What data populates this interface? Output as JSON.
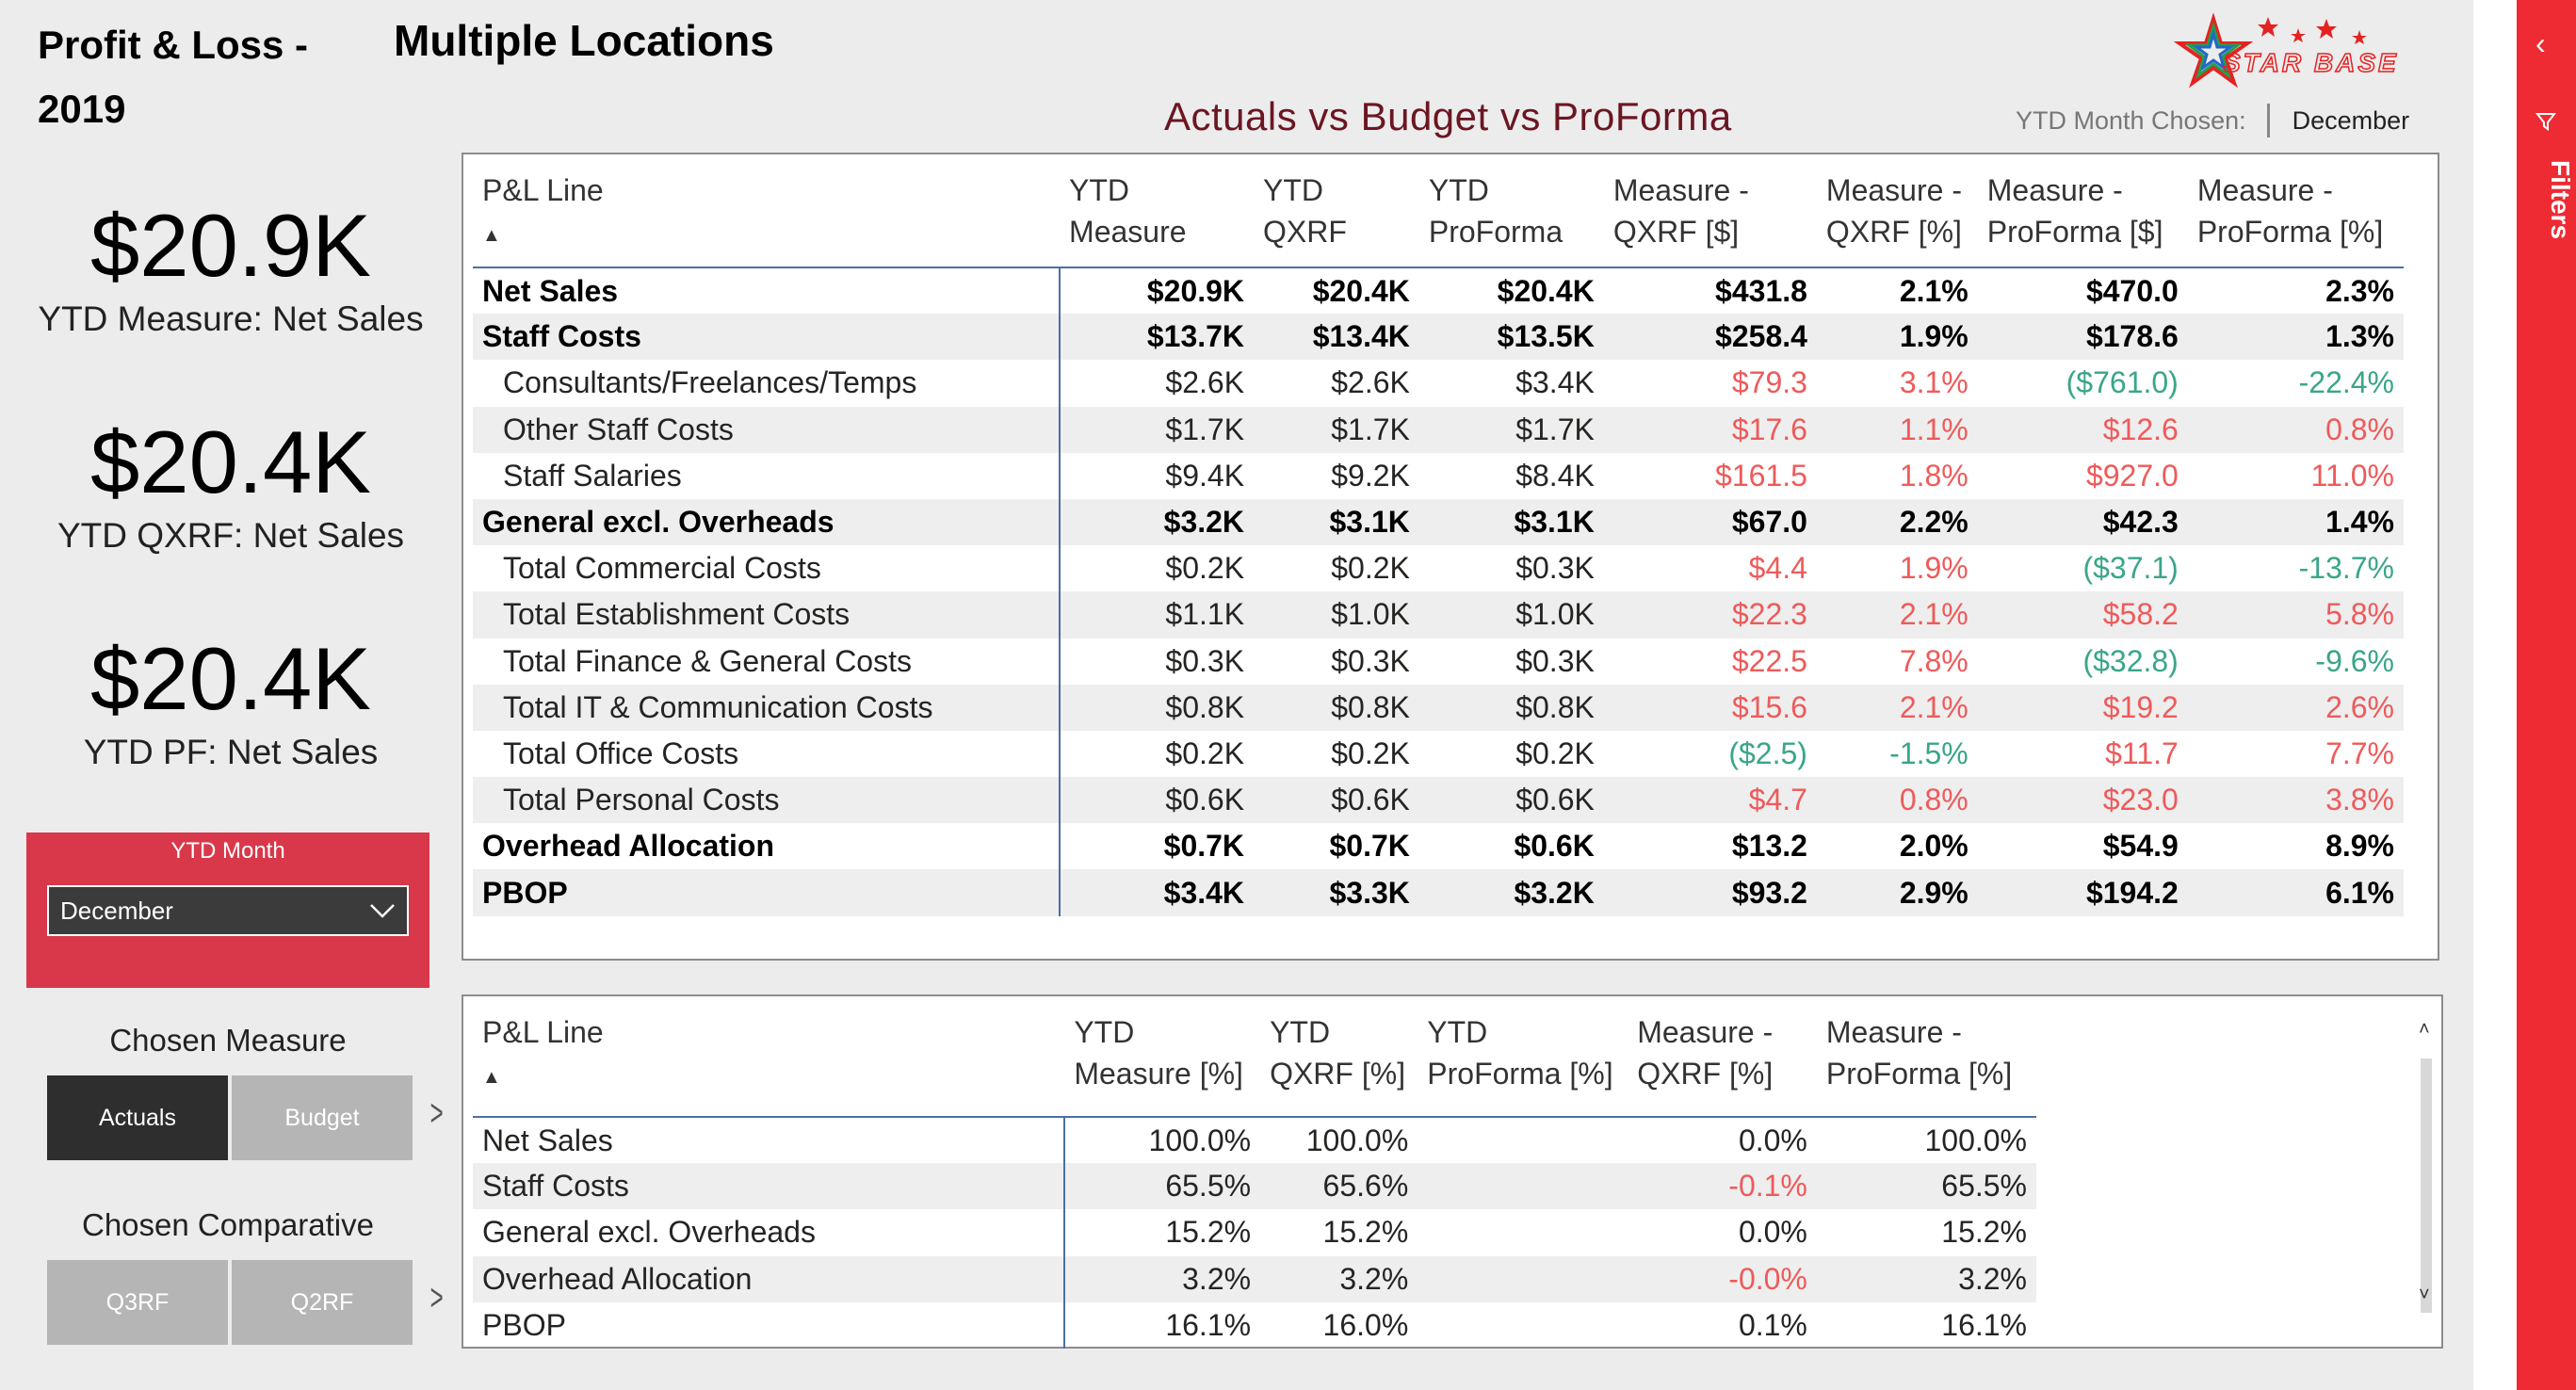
{
  "header": {
    "title_left_line1": "Profit & Loss -",
    "title_left_line2": "2019",
    "title_right": "Multiple Locations",
    "subtitle": "Actuals vs Budget vs ProForma",
    "logo_text": "STAR BASE",
    "ytd_chosen_label": "YTD Month Chosen:",
    "ytd_chosen_value": "December"
  },
  "cards": [
    {
      "value": "$20.9K",
      "label": "YTD Measure: Net Sales"
    },
    {
      "value": "$20.4K",
      "label": "YTD QXRF: Net Sales"
    },
    {
      "value": "$20.4K",
      "label": "YTD PF: Net Sales"
    }
  ],
  "slicer": {
    "label": "YTD Month",
    "value": "December"
  },
  "chosen_measure": {
    "title": "Chosen Measure",
    "buttons": [
      "Actuals",
      "Budget"
    ]
  },
  "chosen_comparative": {
    "title": "Chosen Comparative",
    "buttons": [
      "Q3RF",
      "Q2RF"
    ]
  },
  "table1": {
    "headers": [
      "P&L Line",
      "YTD Measure",
      "YTD QXRF",
      "YTD ProForma",
      "Measure - QXRF [$]",
      "Measure - QXRF [%]",
      "Measure - ProForma [$]",
      "Measure - ProForma [%]"
    ],
    "rows": [
      {
        "cells": [
          "Net Sales",
          "$20.9K",
          "$20.4K",
          "$20.4K",
          "$431.8",
          "2.1%",
          "$470.0",
          "2.3%"
        ],
        "bold": true,
        "tones": [
          "",
          "",
          "",
          "",
          "",
          "",
          "",
          ""
        ]
      },
      {
        "cells": [
          "Staff Costs",
          "$13.7K",
          "$13.4K",
          "$13.5K",
          "$258.4",
          "1.9%",
          "$178.6",
          "1.3%"
        ],
        "bold": true,
        "tones": [
          "",
          "",
          "",
          "",
          "",
          "",
          "",
          ""
        ]
      },
      {
        "cells": [
          "Consultants/Freelances/Temps",
          "$2.6K",
          "$2.6K",
          "$3.4K",
          "$79.3",
          "3.1%",
          "($761.0)",
          "-22.4%"
        ],
        "bold": false,
        "tones": [
          "",
          "",
          "",
          "",
          "neg",
          "neg",
          "pos",
          "pos"
        ]
      },
      {
        "cells": [
          "Other Staff Costs",
          "$1.7K",
          "$1.7K",
          "$1.7K",
          "$17.6",
          "1.1%",
          "$12.6",
          "0.8%"
        ],
        "bold": false,
        "tones": [
          "",
          "",
          "",
          "",
          "neg",
          "neg",
          "neg",
          "neg"
        ]
      },
      {
        "cells": [
          "Staff Salaries",
          "$9.4K",
          "$9.2K",
          "$8.4K",
          "$161.5",
          "1.8%",
          "$927.0",
          "11.0%"
        ],
        "bold": false,
        "tones": [
          "",
          "",
          "",
          "",
          "neg",
          "neg",
          "neg",
          "neg"
        ]
      },
      {
        "cells": [
          "General excl. Overheads",
          "$3.2K",
          "$3.1K",
          "$3.1K",
          "$67.0",
          "2.2%",
          "$42.3",
          "1.4%"
        ],
        "bold": true,
        "tones": [
          "",
          "",
          "",
          "",
          "",
          "",
          "",
          ""
        ]
      },
      {
        "cells": [
          "Total Commercial Costs",
          "$0.2K",
          "$0.2K",
          "$0.3K",
          "$4.4",
          "1.9%",
          "($37.1)",
          "-13.7%"
        ],
        "bold": false,
        "tones": [
          "",
          "",
          "",
          "",
          "neg",
          "neg",
          "pos",
          "pos"
        ]
      },
      {
        "cells": [
          "Total Establishment Costs",
          "$1.1K",
          "$1.0K",
          "$1.0K",
          "$22.3",
          "2.1%",
          "$58.2",
          "5.8%"
        ],
        "bold": false,
        "tones": [
          "",
          "",
          "",
          "",
          "neg",
          "neg",
          "neg",
          "neg"
        ]
      },
      {
        "cells": [
          "Total Finance & General Costs",
          "$0.3K",
          "$0.3K",
          "$0.3K",
          "$22.5",
          "7.8%",
          "($32.8)",
          "-9.6%"
        ],
        "bold": false,
        "tones": [
          "",
          "",
          "",
          "",
          "neg",
          "neg",
          "pos",
          "pos"
        ]
      },
      {
        "cells": [
          "Total IT & Communication Costs",
          "$0.8K",
          "$0.8K",
          "$0.8K",
          "$15.6",
          "2.1%",
          "$19.2",
          "2.6%"
        ],
        "bold": false,
        "tones": [
          "",
          "",
          "",
          "",
          "neg",
          "neg",
          "neg",
          "neg"
        ]
      },
      {
        "cells": [
          "Total Office Costs",
          "$0.2K",
          "$0.2K",
          "$0.2K",
          "($2.5)",
          "-1.5%",
          "$11.7",
          "7.7%"
        ],
        "bold": false,
        "tones": [
          "",
          "",
          "",
          "",
          "pos",
          "pos",
          "neg",
          "neg"
        ]
      },
      {
        "cells": [
          "Total Personal Costs",
          "$0.6K",
          "$0.6K",
          "$0.6K",
          "$4.7",
          "0.8%",
          "$23.0",
          "3.8%"
        ],
        "bold": false,
        "tones": [
          "",
          "",
          "",
          "",
          "neg",
          "neg",
          "neg",
          "neg"
        ]
      },
      {
        "cells": [
          "Overhead Allocation",
          "$0.7K",
          "$0.7K",
          "$0.6K",
          "$13.2",
          "2.0%",
          "$54.9",
          "8.9%"
        ],
        "bold": true,
        "tones": [
          "",
          "",
          "",
          "",
          "",
          "",
          "",
          ""
        ]
      },
      {
        "cells": [
          "PBOP",
          "$3.4K",
          "$3.3K",
          "$3.2K",
          "$93.2",
          "2.9%",
          "$194.2",
          "6.1%"
        ],
        "bold": true,
        "tones": [
          "",
          "",
          "",
          "",
          "",
          "",
          "",
          ""
        ]
      }
    ]
  },
  "table2": {
    "headers": [
      "P&L Line",
      "YTD Measure [%]",
      "YTD QXRF [%]",
      "YTD ProForma [%]",
      "Measure - QXRF [%]",
      "Measure - ProForma [%]"
    ],
    "rows": [
      {
        "cells": [
          "Net Sales",
          "100.0%",
          "100.0%",
          "",
          "0.0%",
          "100.0%"
        ],
        "tones": [
          "",
          "",
          "",
          "",
          "",
          ""
        ]
      },
      {
        "cells": [
          "Staff Costs",
          "65.5%",
          "65.6%",
          "",
          "-0.1%",
          "65.5%"
        ],
        "tones": [
          "",
          "",
          "",
          "",
          "neg",
          ""
        ]
      },
      {
        "cells": [
          "General excl. Overheads",
          "15.2%",
          "15.2%",
          "",
          "0.0%",
          "15.2%"
        ],
        "tones": [
          "",
          "",
          "",
          "",
          "",
          ""
        ]
      },
      {
        "cells": [
          "Overhead Allocation",
          "3.2%",
          "3.2%",
          "",
          "-0.0%",
          "3.2%"
        ],
        "tones": [
          "",
          "",
          "",
          "",
          "neg",
          ""
        ]
      },
      {
        "cells": [
          "PBOP",
          "16.1%",
          "16.0%",
          "",
          "0.1%",
          "16.1%"
        ],
        "tones": [
          "",
          "",
          "",
          "",
          "",
          ""
        ]
      }
    ]
  },
  "filters_pane": {
    "label": "Filters",
    "back_icon": "chevron-left-icon",
    "filter_icon": "funnel-icon"
  },
  "colors": {
    "accent_red": "#ee2a33",
    "slicer_red": "#d9384a",
    "negative": "#ef5a5a",
    "positive": "#3aa58a",
    "subtitle": "#6b1622"
  }
}
